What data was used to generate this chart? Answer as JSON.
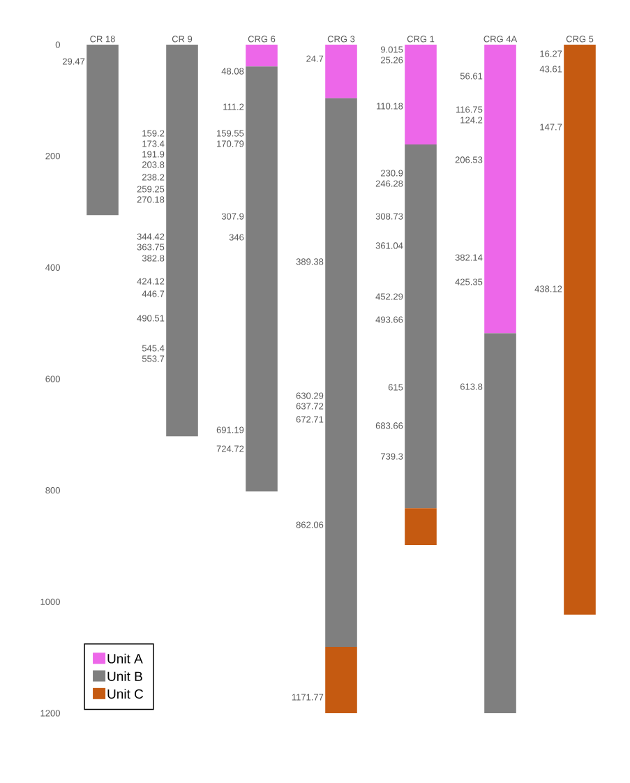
{
  "chart_data": {
    "type": "bar",
    "stacked": true,
    "categories": [
      "CR 18",
      "CR 9",
      "CRG 6",
      "CRG 3",
      "CRG 1",
      "CRG 4A",
      "CRG 5"
    ],
    "series": [
      {
        "name": "Unit A",
        "color": "#ed67e9",
        "values": [
          null,
          null,
          39,
          96,
          179,
          518,
          null
        ]
      },
      {
        "name": "Unit B",
        "color": "#7f7f7f",
        "values": [
          306,
          703,
          763,
          985,
          653,
          682,
          null
        ]
      },
      {
        "name": "Unit C",
        "color": "#c55a11",
        "values": [
          null,
          null,
          null,
          119,
          66,
          null,
          1023
        ]
      }
    ],
    "ylim": [
      1200,
      0
    ],
    "yticks": [
      0,
      200,
      400,
      600,
      800,
      1000,
      1200
    ],
    "grid": false,
    "legend": "bottom left",
    "annotations": [
      "29.47",
      "159.2",
      "173.4",
      "191.9",
      "203.8",
      "238.2",
      "259.25",
      "270.18",
      "344.42",
      "363.75",
      "382.8",
      "424.12",
      "446.7",
      "490.51",
      "545.4",
      "553.7",
      "48.08",
      "111.2",
      "159.55",
      "170.79",
      "307.9",
      "346",
      "691.19",
      "724.72",
      "24.7",
      "389.38",
      "630.29",
      "637.72",
      "672.71",
      "862.06",
      "1171.77",
      "9.015",
      "25.26",
      "110.18",
      "230.9",
      "246.28",
      "308.73",
      "361.04",
      "452.29",
      "493.66",
      "615",
      "683.66",
      "739.3",
      "56.61",
      "116.75",
      "124.2",
      "206.53",
      "382.14",
      "425.35",
      "613.8",
      "16.27",
      "43.61",
      "147.7",
      "438.12"
    ]
  }
}
